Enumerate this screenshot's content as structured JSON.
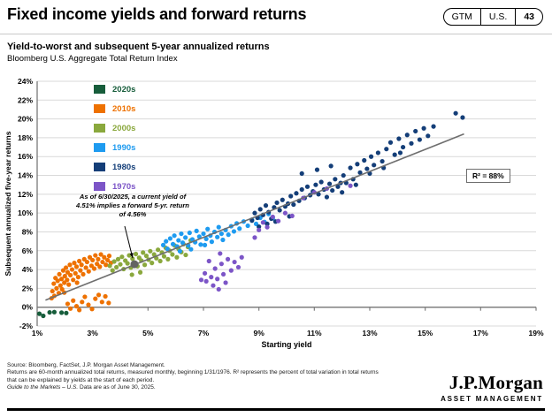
{
  "header": {
    "title": "Fixed income yields and forward returns",
    "badge": {
      "gtm": "GTM",
      "region": "U.S.",
      "page": "43"
    }
  },
  "chart": {
    "heading": "Yield-to-worst and subsequent 5-year annualized returns",
    "subheading": "Bloomberg U.S. Aggregate Total Return Index",
    "annotation": {
      "line1": "As of 6/30/2025, a current yield of",
      "line2": "4.51% implies a forward 5-yr. return",
      "line3": "of 4.56%"
    },
    "r_squared_label": "R² = 88%"
  },
  "chart_data": {
    "type": "scatter",
    "title": "Yield-to-worst and subsequent 5-year annualized returns",
    "subtitle": "Bloomberg U.S. Aggregate Total Return Index",
    "xlabel": "Starting yield",
    "ylabel": "Subsequent annualized five-year returns",
    "xlim": [
      1,
      19
    ],
    "ylim": [
      -2,
      24
    ],
    "x_ticks": [
      1,
      3,
      5,
      7,
      9,
      11,
      13,
      15,
      17,
      19
    ],
    "y_ticks": [
      -2,
      0,
      2,
      4,
      6,
      8,
      10,
      12,
      14,
      16,
      18,
      20,
      22,
      24
    ],
    "grid": "horizontal",
    "legend_position": "upper-left",
    "zero_axis_color": "#7f7f7f",
    "gridline_color": "#d9d9d9",
    "trendline": {
      "x1": 1.3,
      "y1": 0.75,
      "x2": 16.4,
      "y2": 18.4,
      "color": "#6e6e6e"
    },
    "highlight_point": {
      "x": 4.51,
      "y": 4.56,
      "color": "#636363"
    },
    "r_squared": "R² = 88%",
    "series": [
      {
        "name": "2020s",
        "color": "#175d3b",
        "points": [
          [
            1.08,
            -0.7
          ],
          [
            1.22,
            -0.92
          ],
          [
            1.45,
            -0.55
          ],
          [
            1.62,
            -0.52
          ],
          [
            1.88,
            -0.58
          ],
          [
            2.05,
            -0.62
          ]
        ]
      },
      {
        "name": "2010s",
        "color": "#ee7100",
        "points": [
          [
            1.52,
            0.95
          ],
          [
            1.55,
            1.7
          ],
          [
            1.6,
            2.5
          ],
          [
            1.62,
            1.2
          ],
          [
            1.66,
            3.1
          ],
          [
            1.7,
            2.0
          ],
          [
            1.74,
            2.8
          ],
          [
            1.78,
            1.5
          ],
          [
            1.8,
            3.5
          ],
          [
            1.84,
            2.3
          ],
          [
            1.88,
            3.0
          ],
          [
            1.9,
            1.9
          ],
          [
            1.94,
            3.9
          ],
          [
            1.98,
            2.6
          ],
          [
            2.0,
            3.3
          ],
          [
            2.04,
            4.2
          ],
          [
            2.08,
            2.9
          ],
          [
            2.1,
            3.7
          ],
          [
            2.14,
            2.4
          ],
          [
            2.18,
            4.5
          ],
          [
            2.2,
            3.4
          ],
          [
            2.26,
            4.0
          ],
          [
            2.3,
            2.9
          ],
          [
            2.34,
            4.7
          ],
          [
            2.38,
            3.6
          ],
          [
            2.42,
            4.3
          ],
          [
            2.48,
            3.2
          ],
          [
            2.52,
            4.9
          ],
          [
            2.56,
            3.9
          ],
          [
            2.6,
            4.5
          ],
          [
            2.66,
            3.5
          ],
          [
            2.7,
            5.1
          ],
          [
            2.76,
            4.2
          ],
          [
            2.8,
            4.8
          ],
          [
            2.86,
            3.8
          ],
          [
            2.9,
            5.3
          ],
          [
            2.96,
            4.4
          ],
          [
            3.0,
            5.0
          ],
          [
            3.06,
            4.1
          ],
          [
            3.1,
            5.5
          ],
          [
            3.16,
            4.6
          ],
          [
            3.2,
            5.1
          ],
          [
            3.26,
            4.3
          ],
          [
            3.3,
            5.6
          ],
          [
            3.36,
            4.8
          ],
          [
            3.42,
            5.3
          ],
          [
            3.48,
            4.5
          ],
          [
            3.54,
            5.0
          ],
          [
            3.6,
            5.45
          ],
          [
            3.66,
            4.7
          ],
          [
            2.44,
            2.6
          ],
          [
            1.98,
            1.55
          ],
          [
            2.1,
            0.35
          ],
          [
            2.2,
            -0.15
          ],
          [
            2.3,
            0.7
          ],
          [
            2.42,
            0.1
          ],
          [
            2.52,
            -0.3
          ],
          [
            2.62,
            0.55
          ],
          [
            2.72,
            1.1
          ],
          [
            2.85,
            0.25
          ],
          [
            2.98,
            -0.2
          ],
          [
            3.1,
            0.9
          ],
          [
            3.22,
            1.3
          ],
          [
            3.34,
            0.55
          ],
          [
            3.46,
            1.15
          ],
          [
            3.58,
            0.45
          ]
        ]
      },
      {
        "name": "2000s",
        "color": "#8aa83d",
        "points": [
          [
            3.62,
            4.4
          ],
          [
            3.72,
            3.9
          ],
          [
            3.78,
            4.85
          ],
          [
            3.86,
            4.25
          ],
          [
            3.92,
            5.1
          ],
          [
            4.0,
            4.55
          ],
          [
            4.06,
            5.35
          ],
          [
            4.12,
            4.05
          ],
          [
            4.18,
            4.95
          ],
          [
            4.26,
            4.65
          ],
          [
            4.32,
            5.5
          ],
          [
            4.38,
            4.2
          ],
          [
            4.44,
            5.15
          ],
          [
            4.5,
            4.75
          ],
          [
            4.56,
            5.65
          ],
          [
            4.62,
            4.35
          ],
          [
            4.68,
            5.25
          ],
          [
            4.76,
            4.95
          ],
          [
            4.82,
            5.8
          ],
          [
            4.88,
            4.5
          ],
          [
            4.94,
            5.45
          ],
          [
            5.02,
            5.05
          ],
          [
            5.08,
            5.95
          ],
          [
            5.14,
            4.7
          ],
          [
            5.22,
            5.6
          ],
          [
            5.3,
            5.2
          ],
          [
            5.36,
            6.1
          ],
          [
            5.44,
            4.9
          ],
          [
            5.5,
            5.8
          ],
          [
            5.58,
            5.4
          ],
          [
            5.64,
            6.3
          ],
          [
            5.72,
            5.1
          ],
          [
            5.78,
            6.0
          ],
          [
            5.88,
            5.6
          ],
          [
            5.96,
            6.55
          ],
          [
            6.04,
            5.3
          ],
          [
            6.1,
            6.2
          ],
          [
            6.2,
            5.85
          ],
          [
            6.28,
            6.7
          ],
          [
            6.36,
            5.55
          ],
          [
            6.44,
            6.4
          ],
          [
            6.54,
            7.1
          ],
          [
            4.42,
            3.45
          ],
          [
            4.72,
            3.7
          ]
        ]
      },
      {
        "name": "1990s",
        "color": "#1e9bf0",
        "points": [
          [
            5.55,
            6.6
          ],
          [
            5.65,
            7.0
          ],
          [
            5.7,
            6.2
          ],
          [
            5.8,
            7.3
          ],
          [
            5.9,
            6.7
          ],
          [
            5.95,
            7.6
          ],
          [
            6.05,
            6.45
          ],
          [
            6.1,
            7.1
          ],
          [
            6.2,
            7.8
          ],
          [
            6.25,
            6.85
          ],
          [
            6.35,
            7.4
          ],
          [
            6.45,
            6.55
          ],
          [
            6.5,
            7.9
          ],
          [
            6.6,
            7.2
          ],
          [
            6.7,
            6.9
          ],
          [
            6.75,
            8.1
          ],
          [
            6.85,
            7.5
          ],
          [
            6.9,
            6.65
          ],
          [
            7.0,
            7.8
          ],
          [
            7.1,
            7.25
          ],
          [
            7.15,
            8.3
          ],
          [
            7.25,
            7.6
          ],
          [
            7.3,
            6.95
          ],
          [
            7.4,
            8.0
          ],
          [
            7.5,
            7.45
          ],
          [
            7.55,
            8.5
          ],
          [
            7.65,
            7.8
          ],
          [
            7.7,
            7.15
          ],
          [
            7.8,
            8.2
          ],
          [
            7.9,
            7.7
          ],
          [
            8.0,
            8.6
          ],
          [
            8.1,
            8.05
          ],
          [
            8.2,
            8.9
          ],
          [
            8.3,
            8.35
          ],
          [
            8.45,
            9.1
          ],
          [
            8.6,
            8.65
          ],
          [
            8.75,
            9.3
          ],
          [
            8.9,
            8.85
          ],
          [
            9.05,
            9.5
          ],
          [
            9.2,
            9.05
          ],
          [
            9.35,
            9.9
          ],
          [
            9.5,
            9.45
          ],
          [
            6.15,
            5.95
          ],
          [
            6.55,
            6.15
          ],
          [
            7.05,
            6.6
          ]
        ]
      },
      {
        "name": "1980s",
        "color": "#143e78",
        "points": [
          [
            8.75,
            9.2
          ],
          [
            8.85,
            10.0
          ],
          [
            8.95,
            9.5
          ],
          [
            9.0,
            8.55
          ],
          [
            9.05,
            10.4
          ],
          [
            9.15,
            9.8
          ],
          [
            9.25,
            10.8
          ],
          [
            9.3,
            8.85
          ],
          [
            9.35,
            10.1
          ],
          [
            9.45,
            9.4
          ],
          [
            9.55,
            10.6
          ],
          [
            9.6,
            9.1
          ],
          [
            9.65,
            11.1
          ],
          [
            9.75,
            10.3
          ],
          [
            9.85,
            11.4
          ],
          [
            9.95,
            10.7
          ],
          [
            10.05,
            11.0
          ],
          [
            10.1,
            9.65
          ],
          [
            10.15,
            11.8
          ],
          [
            10.25,
            10.9
          ],
          [
            10.35,
            12.1
          ],
          [
            10.45,
            11.3
          ],
          [
            10.55,
            12.5
          ],
          [
            10.55,
            14.2
          ],
          [
            10.65,
            11.6
          ],
          [
            10.75,
            12.8
          ],
          [
            10.85,
            11.9
          ],
          [
            10.95,
            12.3
          ],
          [
            11.05,
            13.0
          ],
          [
            11.1,
            14.6
          ],
          [
            11.15,
            12.0
          ],
          [
            11.25,
            13.3
          ],
          [
            11.35,
            12.5
          ],
          [
            11.45,
            11.7
          ],
          [
            11.55,
            13.1
          ],
          [
            11.6,
            15.0
          ],
          [
            11.65,
            12.4
          ],
          [
            11.75,
            13.6
          ],
          [
            11.85,
            12.8
          ],
          [
            11.95,
            13.2
          ],
          [
            12.05,
            14.0
          ],
          [
            12.15,
            13.2
          ],
          [
            12.3,
            14.8
          ],
          [
            12.4,
            13.6
          ],
          [
            12.55,
            15.2
          ],
          [
            12.65,
            14.3
          ],
          [
            12.8,
            15.6
          ],
          [
            12.9,
            14.7
          ],
          [
            13.05,
            16.0
          ],
          [
            13.15,
            15.1
          ],
          [
            13.3,
            16.4
          ],
          [
            13.45,
            15.5
          ],
          [
            13.6,
            16.8
          ],
          [
            13.75,
            17.5
          ],
          [
            13.9,
            16.2
          ],
          [
            14.05,
            17.9
          ],
          [
            14.2,
            17.0
          ],
          [
            14.35,
            18.3
          ],
          [
            14.5,
            17.4
          ],
          [
            14.65,
            18.7
          ],
          [
            14.8,
            17.8
          ],
          [
            14.95,
            19.0
          ],
          [
            15.1,
            18.2
          ],
          [
            15.3,
            19.2
          ],
          [
            16.1,
            20.6
          ],
          [
            16.35,
            20.15
          ],
          [
            12.0,
            12.2
          ],
          [
            12.5,
            13.0
          ],
          [
            13.0,
            14.2
          ],
          [
            13.5,
            14.8
          ],
          [
            14.1,
            16.4
          ]
        ]
      },
      {
        "name": "1970s",
        "color": "#7c55c7",
        "points": [
          [
            6.92,
            2.9
          ],
          [
            7.05,
            3.6
          ],
          [
            7.1,
            2.75
          ],
          [
            7.2,
            4.9
          ],
          [
            7.28,
            3.2
          ],
          [
            7.35,
            2.3
          ],
          [
            7.42,
            4.1
          ],
          [
            7.5,
            3.0
          ],
          [
            7.55,
            1.9
          ],
          [
            7.6,
            5.7
          ],
          [
            7.65,
            4.6
          ],
          [
            7.72,
            3.5
          ],
          [
            7.8,
            2.6
          ],
          [
            7.88,
            5.1
          ],
          [
            8.0,
            3.9
          ],
          [
            8.12,
            4.8
          ],
          [
            8.26,
            4.25
          ],
          [
            8.38,
            5.3
          ],
          [
            8.85,
            7.4
          ],
          [
            9.0,
            8.2
          ],
          [
            9.15,
            9.0
          ],
          [
            9.3,
            8.5
          ],
          [
            9.5,
            9.6
          ],
          [
            9.7,
            9.15
          ],
          [
            9.95,
            10.0
          ],
          [
            10.2,
            9.7
          ],
          [
            10.6,
            11.6
          ],
          [
            11.0,
            12.2
          ],
          [
            11.45,
            12.6
          ],
          [
            12.3,
            12.9
          ]
        ]
      }
    ]
  },
  "footer": {
    "line1": "Source: Bloomberg, FactSet, J.P. Morgan Asset Management.",
    "line2": "Returns are 60-month annualized total returns, measured monthly, beginning 1/31/1976. R² represents the percent of total variation in total returns",
    "line3": "that can be explained by yields at the start of each period.",
    "line4_italic": "Guide to the Markets – U.S.",
    "line4_rest": " Data are as of June 30, 2025.",
    "logo_name": "J.P.Morgan",
    "logo_sub": "ASSET MANAGEMENT"
  }
}
